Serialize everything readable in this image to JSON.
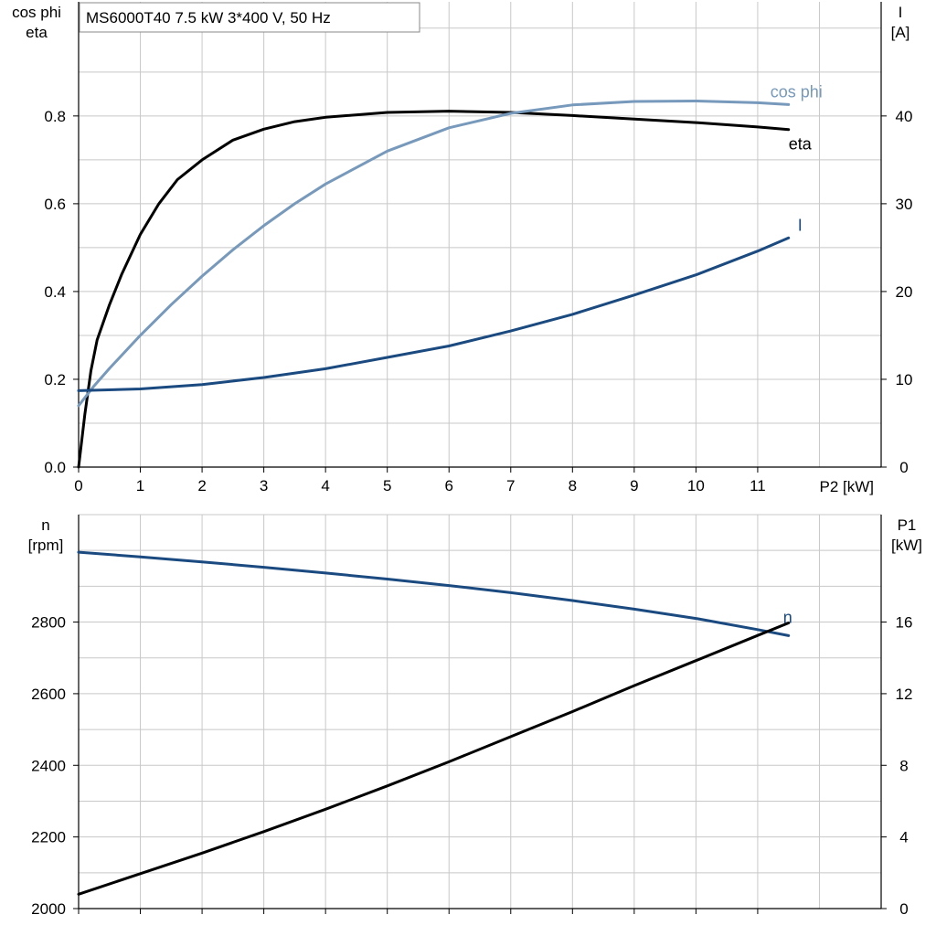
{
  "chart_data": [
    {
      "type": "line",
      "title": "MS6000T40   7.5 kW   3*400 V, 50 Hz",
      "xlabel": "P2 [kW]",
      "xlim": [
        0,
        13
      ],
      "xticks": [
        0,
        1,
        2,
        3,
        4,
        5,
        6,
        7,
        8,
        9,
        10,
        11
      ],
      "ylabel_left": [
        "cos phi",
        "eta"
      ],
      "ylim_left": [
        0,
        1.06
      ],
      "yticks_left": [
        0.0,
        0.2,
        0.4,
        0.6,
        0.8
      ],
      "yticks_left_labels": [
        "0.0",
        "0.2",
        "0.4",
        "0.6",
        "0.8"
      ],
      "ylabel_right": [
        "I",
        "[A]"
      ],
      "ylim_right": [
        0,
        53
      ],
      "yticks_right": [
        0,
        10,
        20,
        30,
        40
      ],
      "grid": true,
      "series": [
        {
          "name": "eta",
          "axis": "left",
          "color": "#000000",
          "x": [
            0,
            0.1,
            0.2,
            0.3,
            0.5,
            0.7,
            1.0,
            1.3,
            1.6,
            2.0,
            2.5,
            3.0,
            3.5,
            4.0,
            5.0,
            6.0,
            7.0,
            8.0,
            9.0,
            10.0,
            11.0,
            11.5
          ],
          "y": [
            0.0,
            0.12,
            0.22,
            0.29,
            0.37,
            0.44,
            0.53,
            0.6,
            0.655,
            0.7,
            0.745,
            0.77,
            0.787,
            0.797,
            0.808,
            0.811,
            0.808,
            0.801,
            0.793,
            0.785,
            0.775,
            0.769
          ]
        },
        {
          "name": "cos phi",
          "axis": "left",
          "color": "#7799bb",
          "x": [
            0,
            0.25,
            0.5,
            1.0,
            1.5,
            2.0,
            2.5,
            3.0,
            3.5,
            4.0,
            5.0,
            6.0,
            7.0,
            8.0,
            9.0,
            10.0,
            11.0,
            11.5
          ],
          "y": [
            0.14,
            0.185,
            0.225,
            0.3,
            0.37,
            0.435,
            0.495,
            0.55,
            0.6,
            0.645,
            0.72,
            0.773,
            0.806,
            0.825,
            0.833,
            0.834,
            0.83,
            0.826
          ]
        },
        {
          "name": "I",
          "axis": "right",
          "color": "#1a4a80",
          "x": [
            0,
            1,
            2,
            3,
            4,
            5,
            6,
            7,
            8,
            9,
            10,
            11,
            11.5
          ],
          "y": [
            8.7,
            8.9,
            9.4,
            10.2,
            11.2,
            12.5,
            13.8,
            15.5,
            17.4,
            19.6,
            21.9,
            24.6,
            26.1
          ]
        }
      ]
    },
    {
      "type": "line",
      "xlim": [
        0,
        13
      ],
      "xticks": [
        0,
        1,
        2,
        3,
        4,
        5,
        6,
        7,
        8,
        9,
        10,
        11
      ],
      "ylabel_left": [
        "n",
        "[rpm]"
      ],
      "ylim_left": [
        2000,
        3100
      ],
      "yticks_left": [
        2000,
        2200,
        2400,
        2600,
        2800
      ],
      "ylabel_right": [
        "P1",
        "[kW]"
      ],
      "ylim_right": [
        0,
        22
      ],
      "yticks_right": [
        0,
        4,
        8,
        12,
        16
      ],
      "grid": true,
      "series": [
        {
          "name": "n",
          "axis": "left",
          "color": "#1a4a80",
          "x": [
            0,
            1,
            2,
            3,
            4,
            5,
            6,
            7,
            8,
            9,
            10,
            11,
            11.5
          ],
          "y": [
            2995,
            2982,
            2968,
            2953,
            2937,
            2920,
            2902,
            2882,
            2860,
            2836,
            2810,
            2779,
            2762
          ]
        },
        {
          "axis": "right",
          "color": "#000000",
          "x": [
            0,
            1,
            2,
            3,
            4,
            5,
            6,
            7,
            8,
            9,
            10,
            11,
            11.5
          ],
          "y": [
            0.8,
            1.95,
            3.1,
            4.3,
            5.55,
            6.85,
            8.2,
            9.6,
            11.0,
            12.45,
            13.85,
            15.25,
            15.95
          ]
        }
      ]
    }
  ]
}
